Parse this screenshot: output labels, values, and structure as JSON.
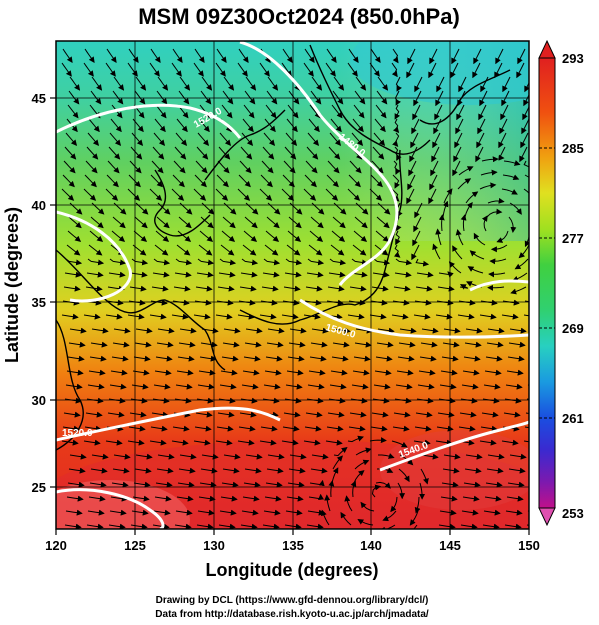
{
  "title": "MSM 09Z30Oct2024 (850.0hPa)",
  "xlabel": "Longitude (degrees)",
  "ylabel": "Latitude  (degrees)",
  "x_ticks": [
    "120",
    "125",
    "130",
    "135",
    "140",
    "145",
    "150"
  ],
  "y_ticks": [
    "25",
    "30",
    "35",
    "40",
    "45"
  ],
  "colorbar": {
    "ticks": [
      "293",
      "285",
      "277",
      "269",
      "261",
      "253"
    ],
    "colors": [
      "#e0226a",
      "#c0108a",
      "#7a1ab0",
      "#3a2ad0",
      "#1a4ee0",
      "#1a9ae0",
      "#28d0c0",
      "#30d070",
      "#40d040",
      "#a0e020",
      "#e0e020",
      "#f0a010",
      "#f05010",
      "#e02020"
    ]
  },
  "contour_labels": [
    "1520.0",
    "1480.0",
    "1500.0",
    "1520.0",
    "1540.0"
  ],
  "credits": {
    "line1": "Drawing by DCL (https://www.gfd-dennou.org/library/dcl/)",
    "line2": "Data from http://database.rish.kyoto-u.ac.jp/arch/jmadata/"
  },
  "chart_data": {
    "type": "heatmap",
    "title": "MSM 09Z30Oct2024 (850.0hPa)",
    "xlabel": "Longitude (degrees)",
    "ylabel": "Latitude  (degrees)",
    "xlim": [
      120,
      150
    ],
    "ylim": [
      22.4,
      47.6
    ],
    "colorbar_range": [
      253,
      293
    ],
    "contour_levels": [
      1480.0,
      1500.0,
      1520.0,
      1540.0
    ]
  }
}
